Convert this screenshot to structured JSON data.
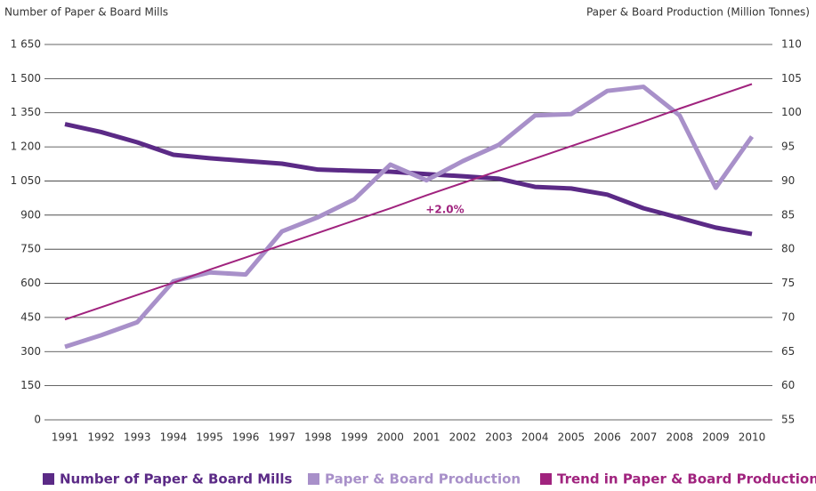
{
  "chart_data": {
    "type": "line",
    "y_label": "Number of Paper & Board Mills",
    "y2_label": "Paper & Board Production (Million Tonnes)",
    "annotation": "+2.0%",
    "categories": [
      "1991",
      "1992",
      "1993",
      "1994",
      "1995",
      "1996",
      "1997",
      "1998",
      "1999",
      "2000",
      "2001",
      "2002",
      "2003",
      "2004",
      "2005",
      "2006",
      "2007",
      "2008",
      "2009",
      "2010"
    ],
    "ylim": [
      0,
      1650
    ],
    "yticks": [
      0,
      150,
      300,
      450,
      600,
      750,
      900,
      {
        "value": 1050,
        "label": "1 050"
      },
      {
        "value": 1200,
        "label": "1 200"
      },
      {
        "value": 1350,
        "label": "1 350"
      },
      {
        "value": 1500,
        "label": "1 500"
      },
      {
        "value": 1650,
        "label": "1 650"
      }
    ],
    "y2lim": [
      55,
      110
    ],
    "y2ticks": [
      55,
      60,
      65,
      70,
      75,
      80,
      85,
      90,
      95,
      100,
      105,
      110
    ],
    "grid": true,
    "series": [
      {
        "name": "Number of Paper & Board Mills",
        "color": "#5b2a86",
        "width": 5,
        "values": [
          1300,
          1265,
          1220,
          1165,
          1150,
          1138,
          1126,
          1100,
          1095,
          1091,
          1080,
          1071,
          1060,
          1024,
          1017,
          990,
          930,
          888,
          845,
          817
        ]
      },
      {
        "name": "Paper & Board Production",
        "color": "#a890c9",
        "width": 5,
        "axis": "y2",
        "values": [
          65.7,
          67.4,
          69.3,
          75.3,
          76.6,
          76.3,
          82.6,
          84.7,
          87.3,
          92.4,
          90.1,
          92.9,
          95.3,
          99.6,
          99.8,
          103.2,
          103.8,
          99.6,
          89.0,
          96.5
        ]
      },
      {
        "name": "Trend in Paper & Board Production",
        "color": "#a0237e",
        "width": 2,
        "axis": "y2",
        "values": [
          69.7,
          71.5,
          73.3,
          75.1,
          77.0,
          78.8,
          80.6,
          82.4,
          84.2,
          86.0,
          87.9,
          89.7,
          91.5,
          93.3,
          95.1,
          96.9,
          98.7,
          100.6,
          102.4,
          104.2
        ]
      }
    ]
  }
}
